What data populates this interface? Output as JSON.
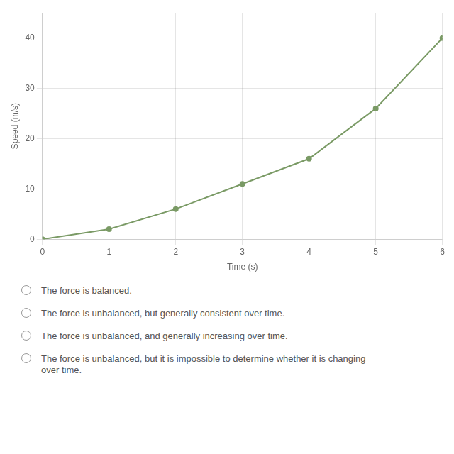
{
  "chart_data": {
    "type": "line",
    "x": [
      0,
      1,
      2,
      3,
      4,
      5,
      6
    ],
    "values": [
      0,
      2,
      6,
      11,
      16,
      26,
      40
    ],
    "color": "#7a9a65",
    "marker": "circle",
    "xlabel": "Time (s)",
    "ylabel": "Speed (m/s)",
    "xlim": [
      0,
      6
    ],
    "ylim": [
      0,
      45
    ],
    "xticks": [
      0,
      1,
      2,
      3,
      4,
      5,
      6
    ],
    "yticks": [
      0,
      10,
      20,
      30,
      40
    ],
    "grid": true,
    "annotations": [
      "The force is balanced.",
      "The force is unbalanced, but generally consistent over time.",
      "The force is unbalanced, and generally increasing over time.",
      "The force is unbalanced, but it is impossible to determine whether it is changing\nover time."
    ]
  }
}
